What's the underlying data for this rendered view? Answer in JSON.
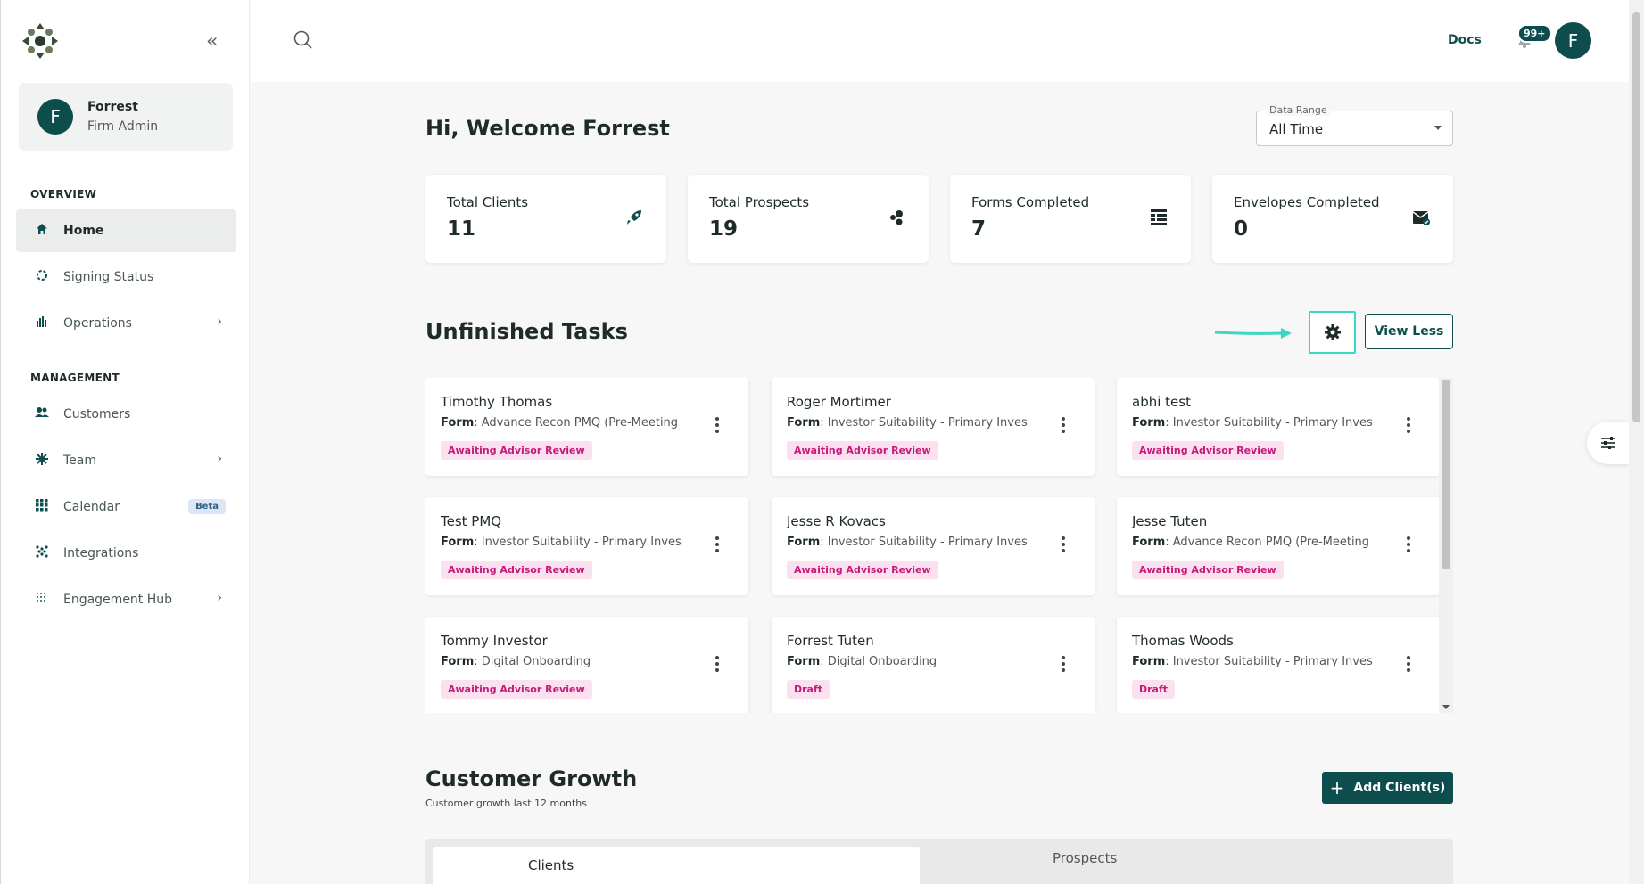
{
  "sidebar": {
    "user": {
      "initial": "F",
      "name": "Forrest",
      "role": "Firm Admin"
    },
    "overview_label": "OVERVIEW",
    "management_label": "MANAGEMENT",
    "items": [
      {
        "label": "Home",
        "icon": "home-icon"
      },
      {
        "label": "Signing Status",
        "icon": "signing-status-icon"
      },
      {
        "label": "Operations",
        "icon": "operations-icon"
      },
      {
        "label": "Customers",
        "icon": "customers-icon"
      },
      {
        "label": "Team",
        "icon": "team-icon"
      },
      {
        "label": "Calendar",
        "icon": "calendar-icon",
        "badge": "Beta"
      },
      {
        "label": "Integrations",
        "icon": "integrations-icon"
      },
      {
        "label": "Engagement Hub",
        "icon": "engagement-hub-icon"
      }
    ]
  },
  "topbar": {
    "docs_label": "Docs",
    "notifications_badge": "99+",
    "avatar_initial": "F"
  },
  "welcome": "Hi, Welcome Forrest",
  "date_range": {
    "label": "Data Range",
    "value": "All Time"
  },
  "stats": [
    {
      "title": "Total Clients",
      "value": "11",
      "icon": "rocket-icon"
    },
    {
      "title": "Total Prospects",
      "value": "19",
      "icon": "prospects-icon"
    },
    {
      "title": "Forms Completed",
      "value": "7",
      "icon": "forms-list-icon"
    },
    {
      "title": "Envelopes Completed",
      "value": "0",
      "icon": "envelope-check-icon"
    }
  ],
  "unfinished": {
    "title": "Unfinished Tasks",
    "view_less_label": "View Less",
    "form_prefix": "Form",
    "tasks": [
      {
        "name": "Timothy Thomas",
        "form": "Advance Recon PMQ (Pre-Meeting",
        "status": "Awaiting Advisor Review"
      },
      {
        "name": "Roger Mortimer",
        "form": "Investor Suitability - Primary Inves",
        "status": "Awaiting Advisor Review"
      },
      {
        "name": "abhi test",
        "form": "Investor Suitability - Primary Inves",
        "status": "Awaiting Advisor Review"
      },
      {
        "name": "Test PMQ",
        "form": "Investor Suitability - Primary Inves",
        "status": "Awaiting Advisor Review"
      },
      {
        "name": "Jesse R Kovacs",
        "form": "Investor Suitability - Primary Inves",
        "status": "Awaiting Advisor Review"
      },
      {
        "name": "Jesse Tuten",
        "form": "Advance Recon PMQ (Pre-Meeting",
        "status": "Awaiting Advisor Review"
      },
      {
        "name": "Tommy Investor",
        "form": "Digital Onboarding",
        "status": "Awaiting Advisor Review"
      },
      {
        "name": "Forrest Tuten",
        "form": "Digital Onboarding",
        "status": "Draft"
      },
      {
        "name": "Thomas Woods",
        "form": "Investor Suitability - Primary Inves",
        "status": "Draft"
      }
    ]
  },
  "growth": {
    "title": "Customer Growth",
    "subtitle": "Customer growth last 12 months",
    "add_label": "Add Client(s)",
    "tabs": [
      "Clients",
      "Prospects"
    ]
  },
  "colors": {
    "primary": "#0e4d4d",
    "highlight": "#3dd6c4",
    "status_pink": "#c7197a"
  }
}
